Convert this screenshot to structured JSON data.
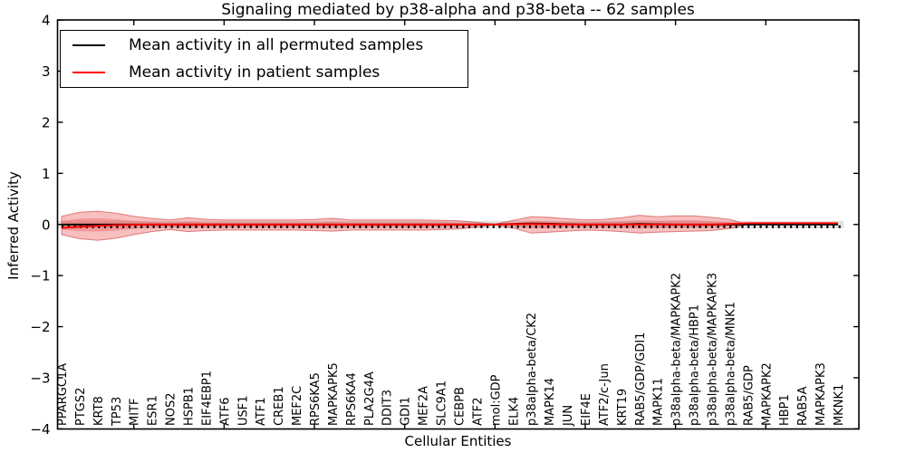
{
  "chart_data": {
    "type": "line",
    "title": "Signaling mediated by p38-alpha and p38-beta -- 62 samples",
    "xlabel": "Cellular Entities",
    "ylabel": "Inferred Activity",
    "ylim": [
      -4,
      4
    ],
    "yticks": [
      4,
      3,
      2,
      1,
      0,
      -1,
      -2,
      -3,
      -4
    ],
    "xticks": [
      5,
      10,
      15,
      20,
      25,
      30,
      35,
      40
    ],
    "grid": false,
    "legend_position": "upper left",
    "legend": [
      {
        "label": "Mean activity in all permuted samples",
        "color": "#000000"
      },
      {
        "label": "Mean activity in patient samples",
        "color": "#ff0000"
      }
    ],
    "categories": [
      "PPARGC1A",
      "PTGS2",
      "KRT8",
      "TP53",
      "MITF",
      "ESR1",
      "NOS2",
      "HSPB1",
      "EIF4EBP1",
      "ATF6",
      "USF1",
      "ATF1",
      "CREB1",
      "MEF2C",
      "RPS6KA5",
      "MAPKAPK5",
      "RPS6KA4",
      "PLA2G4A",
      "DDIT3",
      "GDI1",
      "MEF2A",
      "SLC9A1",
      "CEBPB",
      "ATF2",
      "mol:GDP",
      "ELK4",
      "p38alpha-beta/CK2",
      "MAPK14",
      "JUN",
      "EIF4E",
      "ATF2/c-Jun",
      "KRT19",
      "RAB5/GDP/GDI1",
      "MAPK11",
      "p38alpha-beta/MAPKAPK2",
      "p38alpha-beta/HBP1",
      "p38alpha-beta/MAPKAPK3",
      "p38alpha-beta/MNK1",
      "RAB5/GDP",
      "MAPKAPK2",
      "HBP1",
      "RAB5A",
      "MAPKAPK3",
      "MKNK1"
    ],
    "series": [
      {
        "name": "Mean activity in all permuted samples",
        "color": "#000000",
        "values": [
          0,
          0,
          0,
          0,
          0,
          0,
          0,
          0,
          0,
          0,
          0,
          0,
          0,
          0,
          0,
          0,
          0,
          0,
          0,
          0,
          0,
          0,
          0,
          0,
          0,
          0.01,
          0.02,
          0.015,
          0.005,
          0,
          0,
          0,
          0.01,
          0.005,
          0,
          0,
          0,
          0,
          0,
          0,
          0,
          0,
          0,
          0
        ]
      },
      {
        "name": "Mean activity in patient samples",
        "color": "#ff0000",
        "values": [
          -0.07,
          -0.045,
          -0.025,
          -0.012,
          -0.006,
          0,
          0,
          0,
          0,
          0,
          0,
          0,
          0,
          0,
          0,
          0,
          0,
          0,
          0,
          0,
          0,
          0,
          0,
          0,
          0,
          0.005,
          0.01,
          0.005,
          0,
          0,
          0,
          0,
          0,
          0,
          0,
          0,
          0,
          0.01,
          0.025,
          0.025,
          0.025,
          0.025,
          0.025,
          0.025
        ]
      }
    ],
    "bands": {
      "patient_outer": {
        "fill": "rgba(235,95,95,0.40)",
        "edge": "rgba(205,55,55,0.60)",
        "upper": [
          0.16,
          0.24,
          0.26,
          0.22,
          0.16,
          0.12,
          0.09,
          0.13,
          0.1,
          0.09,
          0.09,
          0.09,
          0.09,
          0.09,
          0.1,
          0.12,
          0.09,
          0.09,
          0.09,
          0.09,
          0.09,
          0.08,
          0.07,
          0.04,
          0.005,
          0.08,
          0.15,
          0.14,
          0.11,
          0.09,
          0.1,
          0.13,
          0.18,
          0.15,
          0.17,
          0.17,
          0.14,
          0.1,
          0,
          0,
          0,
          0,
          0,
          0
        ],
        "lower": [
          -0.2,
          -0.28,
          -0.31,
          -0.27,
          -0.2,
          -0.14,
          -0.1,
          -0.14,
          -0.12,
          -0.11,
          -0.11,
          -0.11,
          -0.11,
          -0.11,
          -0.12,
          -0.13,
          -0.11,
          -0.11,
          -0.11,
          -0.11,
          -0.11,
          -0.1,
          -0.09,
          -0.05,
          -0.005,
          -0.07,
          -0.17,
          -0.15,
          -0.13,
          -0.11,
          -0.12,
          -0.14,
          -0.17,
          -0.15,
          -0.14,
          -0.13,
          -0.12,
          -0.08,
          0,
          0,
          0,
          0,
          0,
          0
        ]
      },
      "patient_inner": {
        "fill": "rgba(235,95,95,0.42)",
        "upper": [
          0.07,
          0.11,
          0.12,
          0.1,
          0.07,
          0.05,
          0.04,
          0.06,
          0.04,
          0.04,
          0.04,
          0.04,
          0.04,
          0.04,
          0.04,
          0.05,
          0.04,
          0.04,
          0.04,
          0.04,
          0.04,
          0.04,
          0.03,
          0.02,
          0.002,
          0.03,
          0.07,
          0.06,
          0.05,
          0.04,
          0.05,
          0.06,
          0.08,
          0.07,
          0.08,
          0.08,
          0.06,
          0.04,
          0,
          0,
          0,
          0,
          0,
          0
        ],
        "lower": [
          -0.1,
          -0.13,
          -0.14,
          -0.12,
          -0.09,
          -0.06,
          -0.05,
          -0.06,
          -0.05,
          -0.05,
          -0.05,
          -0.05,
          -0.05,
          -0.05,
          -0.05,
          -0.06,
          -0.05,
          -0.05,
          -0.05,
          -0.05,
          -0.05,
          -0.04,
          -0.04,
          -0.02,
          -0.002,
          -0.03,
          -0.08,
          -0.07,
          -0.05,
          -0.05,
          -0.05,
          -0.06,
          -0.08,
          -0.07,
          -0.06,
          -0.06,
          -0.05,
          -0.03,
          0,
          0,
          0,
          0,
          0,
          0
        ]
      },
      "permuted": {
        "fill": "rgba(125,125,125,0.22)",
        "upper": 0.07,
        "lower": -0.075
      }
    },
    "dotted_reference_line": {
      "value": -0.045,
      "color": "#000000",
      "style": "dotted"
    }
  }
}
